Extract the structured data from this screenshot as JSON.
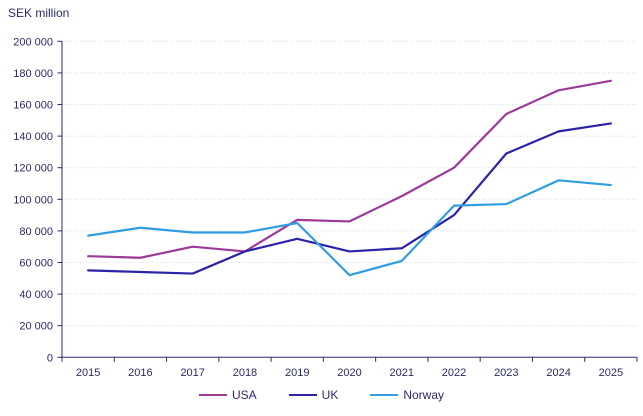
{
  "title": "SEK million",
  "colors": {
    "axis_text": "#2B2B66",
    "grid": "#D7D7EF",
    "usa": "#9D3A97",
    "uk": "#2B24A8",
    "norway": "#2F9EE0",
    "background": "#FFFFFF"
  },
  "chart_data": {
    "type": "line",
    "title": "SEK million",
    "x": [
      "2015",
      "2016",
      "2017",
      "2018",
      "2019",
      "2020",
      "2021",
      "2022",
      "2023",
      "2024",
      "2025"
    ],
    "series": [
      {
        "name": "USA",
        "color_key": "usa",
        "values": [
          64000,
          63000,
          70000,
          67000,
          87000,
          86000,
          102000,
          120000,
          154000,
          169000,
          175000
        ]
      },
      {
        "name": "UK",
        "color_key": "uk",
        "values": [
          55000,
          54000,
          53000,
          67000,
          75000,
          67000,
          69000,
          90000,
          129000,
          143000,
          148000
        ]
      },
      {
        "name": "Norway",
        "color_key": "norway",
        "values": [
          77000,
          82000,
          79000,
          79000,
          85000,
          52000,
          61000,
          96000,
          97000,
          112000,
          109000
        ]
      }
    ],
    "ylim": [
      0,
      200000
    ],
    "ytick_step": 20000,
    "ytick_labels": [
      "0",
      "20 000",
      "40 000",
      "60 000",
      "80 000",
      "100 000",
      "120 000",
      "140 000",
      "160 000",
      "180 000",
      "200 000"
    ],
    "grid": "horizontal-dotted",
    "legend_position": "bottom"
  },
  "legend": {
    "items": [
      {
        "label": "USA"
      },
      {
        "label": "UK"
      },
      {
        "label": "Norway"
      }
    ]
  }
}
